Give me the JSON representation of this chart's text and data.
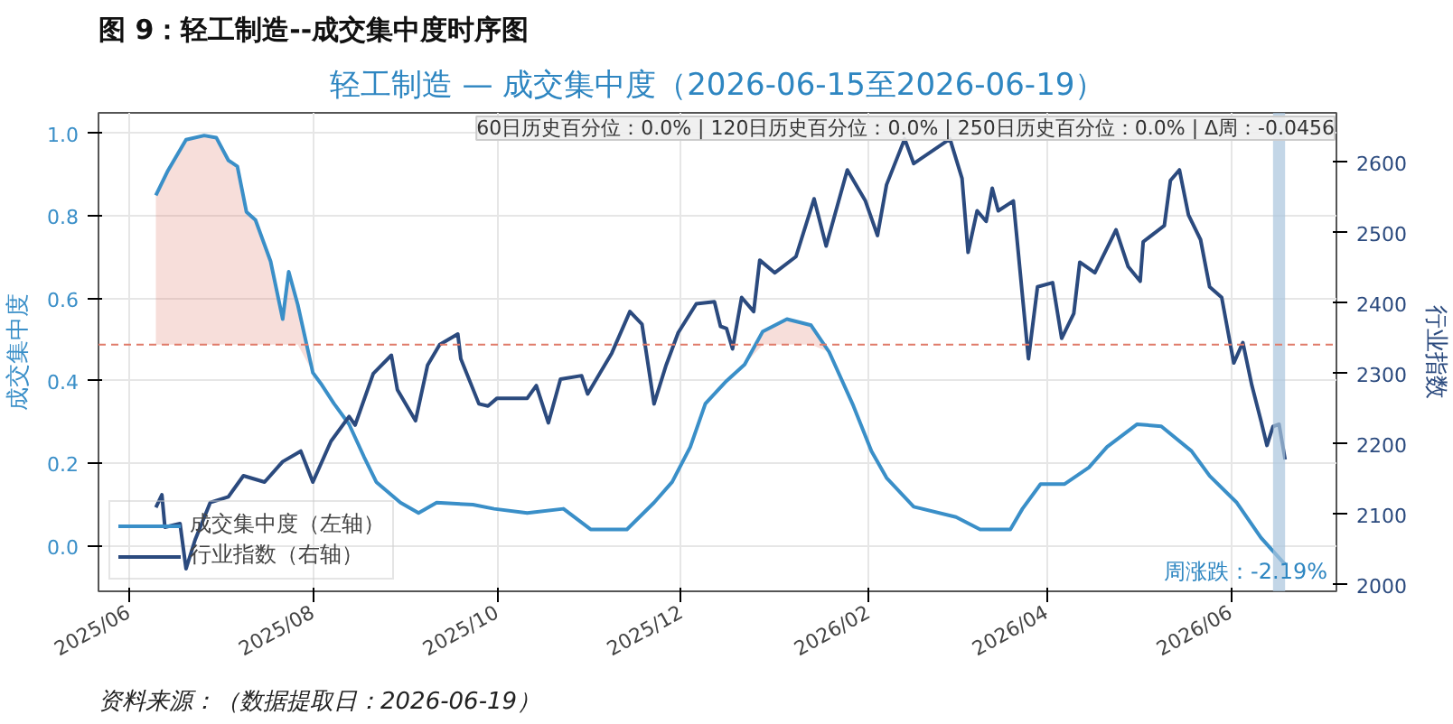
{
  "chart_data": {
    "type": "line",
    "title": "轻工制造 — 成交集中度（2026-06-15至2026-06-19）",
    "subtitle": "图 9：轻工制造--成交集中度时序图",
    "ylabel": "成交集中度",
    "y2label": "行业指数",
    "annotations": [
      "60日历史百分位：0.0% | 120日历史百分位：0.0% | 250日历史百分位：0.0% | Δ周：-0.0456",
      "周涨跌：-2.19%",
      "资料来源：（数据提取日：2026-06-19）"
    ],
    "series": [
      {
        "name": "成交集中度（左轴）",
        "color": "#3a8fc8",
        "x": [
          "2025-06-10",
          "2025-06-14",
          "2025-06-20",
          "2025-06-26",
          "2025-06-30",
          "2025-07-04",
          "2025-07-07",
          "2025-07-10",
          "2025-07-13",
          "2025-07-18",
          "2025-07-22",
          "2025-07-24",
          "2025-07-27",
          "2025-08-01",
          "2025-08-04",
          "2025-08-08",
          "2025-08-13",
          "2025-08-18",
          "2025-08-22",
          "2025-08-30",
          "2025-09-05",
          "2025-09-11",
          "2025-09-23",
          "2025-09-30",
          "2025-10-11",
          "2025-10-23",
          "2025-11-01",
          "2025-11-13",
          "2025-11-22",
          "2025-11-28",
          "2025-12-04",
          "2025-12-09",
          "2025-12-16",
          "2025-12-22",
          "2025-12-28",
          "2026-01-05",
          "2026-01-13",
          "2026-01-19",
          "2026-01-27",
          "2026-02-02",
          "2026-02-07",
          "2026-02-16",
          "2026-03-02",
          "2026-03-10",
          "2026-03-20",
          "2026-03-24",
          "2026-03-30",
          "2026-04-07",
          "2026-04-15",
          "2026-04-21",
          "2026-05-01",
          "2026-05-09",
          "2026-05-19",
          "2026-05-25",
          "2026-06-03",
          "2026-06-11",
          "2026-06-19"
        ],
        "lower": [
          0.488,
          0.488,
          0.488,
          0.488,
          0.488,
          0.488,
          0.488,
          0.488,
          0.488,
          0.488,
          0.488,
          0.488,
          0.488,
          0.42,
          0.39,
          0.345,
          0.295,
          0.215,
          0.155,
          0.105,
          0.08,
          0.105,
          0.1,
          0.09,
          0.08,
          0.09,
          0.04,
          0.04,
          0.105,
          0.155,
          0.24,
          0.345,
          0.4,
          0.44,
          0.488,
          0.488,
          0.488,
          0.47,
          0.34,
          0.23,
          0.165,
          0.095,
          0.07,
          0.04,
          0.04,
          0.09,
          0.15,
          0.15,
          0.19,
          0.24,
          0.295,
          0.29,
          0.23,
          0.17,
          0.105,
          0.02,
          -0.045
        ],
        "upper": [
          0.85,
          0.91,
          0.985,
          0.995,
          0.99,
          0.935,
          0.92,
          0.81,
          0.79,
          0.69,
          0.55,
          0.665,
          0.585,
          0.42,
          0.39,
          0.345,
          0.295,
          0.215,
          0.155,
          0.105,
          0.08,
          0.105,
          0.1,
          0.09,
          0.08,
          0.09,
          0.04,
          0.04,
          0.105,
          0.155,
          0.24,
          0.345,
          0.4,
          0.44,
          0.52,
          0.55,
          0.535,
          0.47,
          0.34,
          0.23,
          0.165,
          0.095,
          0.07,
          0.04,
          0.04,
          0.09,
          0.15,
          0.15,
          0.19,
          0.24,
          0.295,
          0.29,
          0.23,
          0.17,
          0.105,
          0.02,
          -0.045
        ],
        "values": [
          0.85,
          0.91,
          0.985,
          0.995,
          0.99,
          0.935,
          0.92,
          0.81,
          0.79,
          0.69,
          0.55,
          0.665,
          0.585,
          0.42,
          0.39,
          0.345,
          0.295,
          0.215,
          0.155,
          0.105,
          0.08,
          0.105,
          0.1,
          0.09,
          0.08,
          0.09,
          0.04,
          0.04,
          0.105,
          0.155,
          0.24,
          0.345,
          0.4,
          0.44,
          0.52,
          0.55,
          0.535,
          0.47,
          0.34,
          0.23,
          0.165,
          0.095,
          0.07,
          0.04,
          0.04,
          0.09,
          0.15,
          0.15,
          0.19,
          0.24,
          0.295,
          0.29,
          0.23,
          0.17,
          0.105,
          0.02,
          -0.045
        ]
      },
      {
        "name": "行业指数（右轴）",
        "color": "#2b4a7e",
        "axis": "y2",
        "x": [
          "2025-06-10",
          "2025-06-12",
          "2025-06-13",
          "2025-06-18",
          "2025-06-20",
          "2025-06-23",
          "2025-06-28",
          "2025-07-04",
          "2025-07-09",
          "2025-07-16",
          "2025-07-22",
          "2025-07-28",
          "2025-08-01",
          "2025-08-07",
          "2025-08-13",
          "2025-08-15",
          "2025-08-21",
          "2025-08-27",
          "2025-08-29",
          "2025-09-04",
          "2025-09-08",
          "2025-09-12",
          "2025-09-18",
          "2025-09-19",
          "2025-09-25",
          "2025-09-28",
          "2025-10-01",
          "2025-10-11",
          "2025-10-14",
          "2025-10-18",
          "2025-10-22",
          "2025-10-29",
          "2025-10-31",
          "2025-11-04",
          "2025-11-08",
          "2025-11-14",
          "2025-11-18",
          "2025-11-22",
          "2025-11-26",
          "2025-11-30",
          "2025-12-06",
          "2025-12-12",
          "2025-12-14",
          "2025-12-16",
          "2025-12-18",
          "2025-12-21",
          "2025-12-25",
          "2025-12-27",
          "2026-01-01",
          "2026-01-08",
          "2026-01-14",
          "2026-01-18",
          "2026-01-25",
          "2026-01-31",
          "2026-02-04",
          "2026-02-07",
          "2026-02-13",
          "2026-02-16",
          "2026-02-28",
          "2026-03-04",
          "2026-03-06",
          "2026-03-09",
          "2026-03-12",
          "2026-03-14",
          "2026-03-16",
          "2026-03-21",
          "2026-03-26",
          "2026-03-29",
          "2026-04-03",
          "2026-04-06",
          "2026-04-10",
          "2026-04-12",
          "2026-04-17",
          "2026-04-24",
          "2026-04-28",
          "2026-05-02",
          "2026-05-03",
          "2026-05-10",
          "2026-05-12",
          "2026-05-15",
          "2026-05-18",
          "2026-05-22",
          "2026-05-25",
          "2026-05-29",
          "2026-06-02",
          "2026-06-05",
          "2026-06-08",
          "2026-06-11",
          "2026-06-13",
          "2026-06-15",
          "2026-06-17",
          "2026-06-19"
        ],
        "values": [
          2110,
          2128,
          2082,
          2087,
          2023,
          2064,
          2117,
          2125,
          2155,
          2146,
          2175,
          2190,
          2146,
          2204,
          2239,
          2227,
          2300,
          2326,
          2277,
          2233,
          2312,
          2341,
          2356,
          2321,
          2257,
          2254,
          2265,
          2265,
          2283,
          2230,
          2292,
          2297,
          2271,
          2300,
          2329,
          2388,
          2370,
          2257,
          2312,
          2358,
          2399,
          2402,
          2367,
          2364,
          2335,
          2408,
          2388,
          2461,
          2443,
          2466,
          2548,
          2481,
          2589,
          2545,
          2496,
          2568,
          2633,
          2598,
          2633,
          2577,
          2472,
          2531,
          2516,
          2563,
          2531,
          2545,
          2321,
          2423,
          2429,
          2350,
          2385,
          2458,
          2443,
          2504,
          2452,
          2431,
          2487,
          2510,
          2574,
          2589,
          2525,
          2490,
          2423,
          2408,
          2315,
          2344,
          2283,
          2233,
          2198,
          2225,
          2228,
          2178
        ]
      }
    ],
    "xlim": [
      "2025-05-22",
      "2026-07-06"
    ],
    "xticks": [
      {
        "value": "2025-06-01",
        "label": "2025/06"
      },
      {
        "value": "2025-08-01",
        "label": "2025/08"
      },
      {
        "value": "2025-10-01",
        "label": "2025/10"
      },
      {
        "value": "2025-12-01",
        "label": "2025/12"
      },
      {
        "value": "2026-02-01",
        "label": "2026/02"
      },
      {
        "value": "2026-04-01",
        "label": "2026/04"
      },
      {
        "value": "2026-06-01",
        "label": "2026/06"
      }
    ],
    "ylim": [
      -0.11,
      1.05
    ],
    "yticks": [
      {
        "value": 0,
        "label": "0.0"
      },
      {
        "value": 0.2,
        "label": "0.2"
      },
      {
        "value": 0.4,
        "label": "0.4"
      },
      {
        "value": 0.6,
        "label": "0.6"
      },
      {
        "value": 0.8,
        "label": "0.8"
      },
      {
        "value": 1,
        "label": "1.0"
      }
    ],
    "y2lim": [
      1991,
      2670
    ],
    "y2ticks": [
      2000,
      2100,
      2200,
      2300,
      2400,
      2500,
      2600
    ],
    "ref_lines": [
      {
        "axis": "y",
        "value": 0.488,
        "color": "#e07b6a",
        "line_style": "dashed"
      }
    ],
    "bands": [
      {
        "axis": "x",
        "from": "2026-06-15",
        "to": "2026-06-19",
        "color": "#a9c4dd"
      }
    ],
    "grid": true,
    "legend": "bottom left"
  }
}
